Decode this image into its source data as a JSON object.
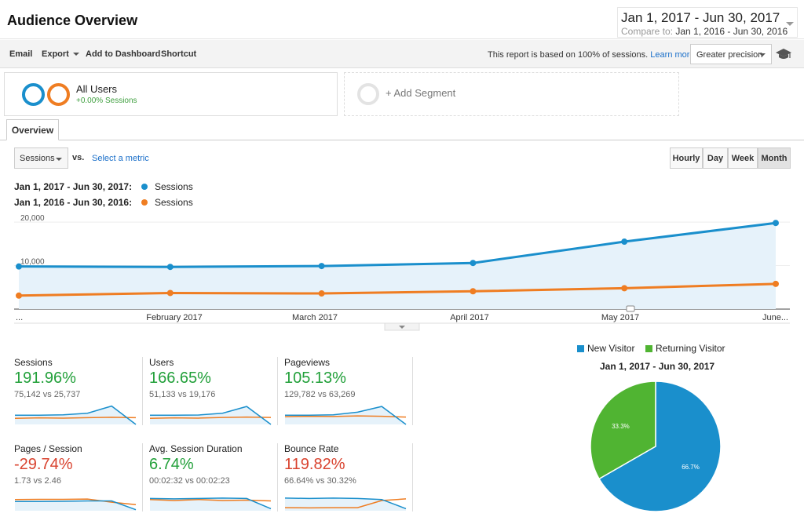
{
  "header": {
    "title": "Audience Overview",
    "date_range": "Jan 1, 2017 - Jun 30, 2017",
    "compare_label": "Compare to:",
    "compare_range": "Jan 1, 2016 - Jun 30, 2016"
  },
  "toolbar": {
    "email": "Email",
    "export": "Export",
    "add_to_dashboard": "Add to Dashboard",
    "shortcut": "Shortcut",
    "report_note": "This report is based on 100% of sessions.",
    "learn_more": "Learn more",
    "precision": "Greater precision",
    "help_icon": "graduation-cap-icon"
  },
  "segments": {
    "all_users": {
      "name": "All Users",
      "sub": "+0.00% Sessions"
    },
    "add_segment": "+ Add Segment"
  },
  "tabs": {
    "overview": "Overview"
  },
  "controls": {
    "metric": "Sessions",
    "vs": "vs.",
    "select_metric": "Select a metric",
    "granularity": [
      "Hourly",
      "Day",
      "Week",
      "Month"
    ],
    "active_granularity": "Month"
  },
  "colors": {
    "current": "#1a8fcc",
    "previous": "#ef7d22",
    "new_visitor": "#1a8fcc",
    "returning_visitor": "#50b432",
    "up": "#22a03a",
    "down": "#d9432f"
  },
  "chart_data": [
    {
      "type": "line",
      "categories": [
        "...",
        "February 2017",
        "March 2017",
        "April 2017",
        "May 2017",
        "June..."
      ],
      "series": [
        {
          "name": "Sessions",
          "range": "Jan 1, 2017 - Jun 30, 2017:",
          "values": [
            9800,
            9700,
            9900,
            10600,
            15500,
            19800
          ]
        },
        {
          "name": "Sessions",
          "range": "Jan 1, 2016 - Jun 30, 2016:",
          "values": [
            3100,
            3700,
            3600,
            4100,
            4800,
            5800
          ]
        }
      ],
      "yticks": [
        "10,000",
        "20,000"
      ],
      "ylim": [
        0,
        22000
      ],
      "grid": true,
      "legend": "top-left"
    },
    {
      "type": "pie",
      "title": "Jan 1, 2017 - Jun 30, 2017",
      "legend": "top",
      "slices": [
        {
          "name": "New Visitor",
          "value": 66.7,
          "label": "66.7%"
        },
        {
          "name": "Returning Visitor",
          "value": 33.3,
          "label": "33.3%"
        }
      ]
    }
  ],
  "scorecards": [
    {
      "name": "Sessions",
      "change": "191.96%",
      "trend": "up",
      "compare": "75,142 vs 25,737",
      "current": [
        0.45,
        0.45,
        0.47,
        0.55,
        0.9,
        0.0
      ],
      "previous": [
        0.3,
        0.32,
        0.31,
        0.33,
        0.35,
        0.33
      ]
    },
    {
      "name": "Users",
      "change": "166.65%",
      "trend": "up",
      "compare": "51,133 vs 19,176",
      "current": [
        0.45,
        0.45,
        0.46,
        0.55,
        0.88,
        0.0
      ],
      "previous": [
        0.3,
        0.32,
        0.31,
        0.34,
        0.36,
        0.34
      ]
    },
    {
      "name": "Pageviews",
      "change": "105.13%",
      "trend": "up",
      "compare": "129,782 vs 63,269",
      "current": [
        0.45,
        0.45,
        0.47,
        0.6,
        0.88,
        0.0
      ],
      "previous": [
        0.38,
        0.4,
        0.39,
        0.42,
        0.4,
        0.36
      ]
    },
    {
      "name": "Pages / Session",
      "change": "-29.74%",
      "trend": "down",
      "compare": "1.73 vs 2.46",
      "current": [
        0.45,
        0.45,
        0.46,
        0.48,
        0.48,
        0.05
      ],
      "previous": [
        0.55,
        0.56,
        0.56,
        0.57,
        0.42,
        0.3
      ]
    },
    {
      "name": "Avg. Session Duration",
      "change": "6.74%",
      "trend": "up",
      "compare": "00:02:32 vs 00:02:23",
      "current": [
        0.6,
        0.58,
        0.6,
        0.62,
        0.6,
        0.1
      ],
      "previous": [
        0.55,
        0.5,
        0.55,
        0.5,
        0.52,
        0.48
      ]
    },
    {
      "name": "Bounce Rate",
      "change": "119.82%",
      "trend": "down",
      "compare": "66.64% vs 30.32%",
      "current": [
        0.62,
        0.6,
        0.62,
        0.6,
        0.55,
        0.1
      ],
      "previous": [
        0.15,
        0.14,
        0.15,
        0.15,
        0.5,
        0.58
      ]
    }
  ]
}
